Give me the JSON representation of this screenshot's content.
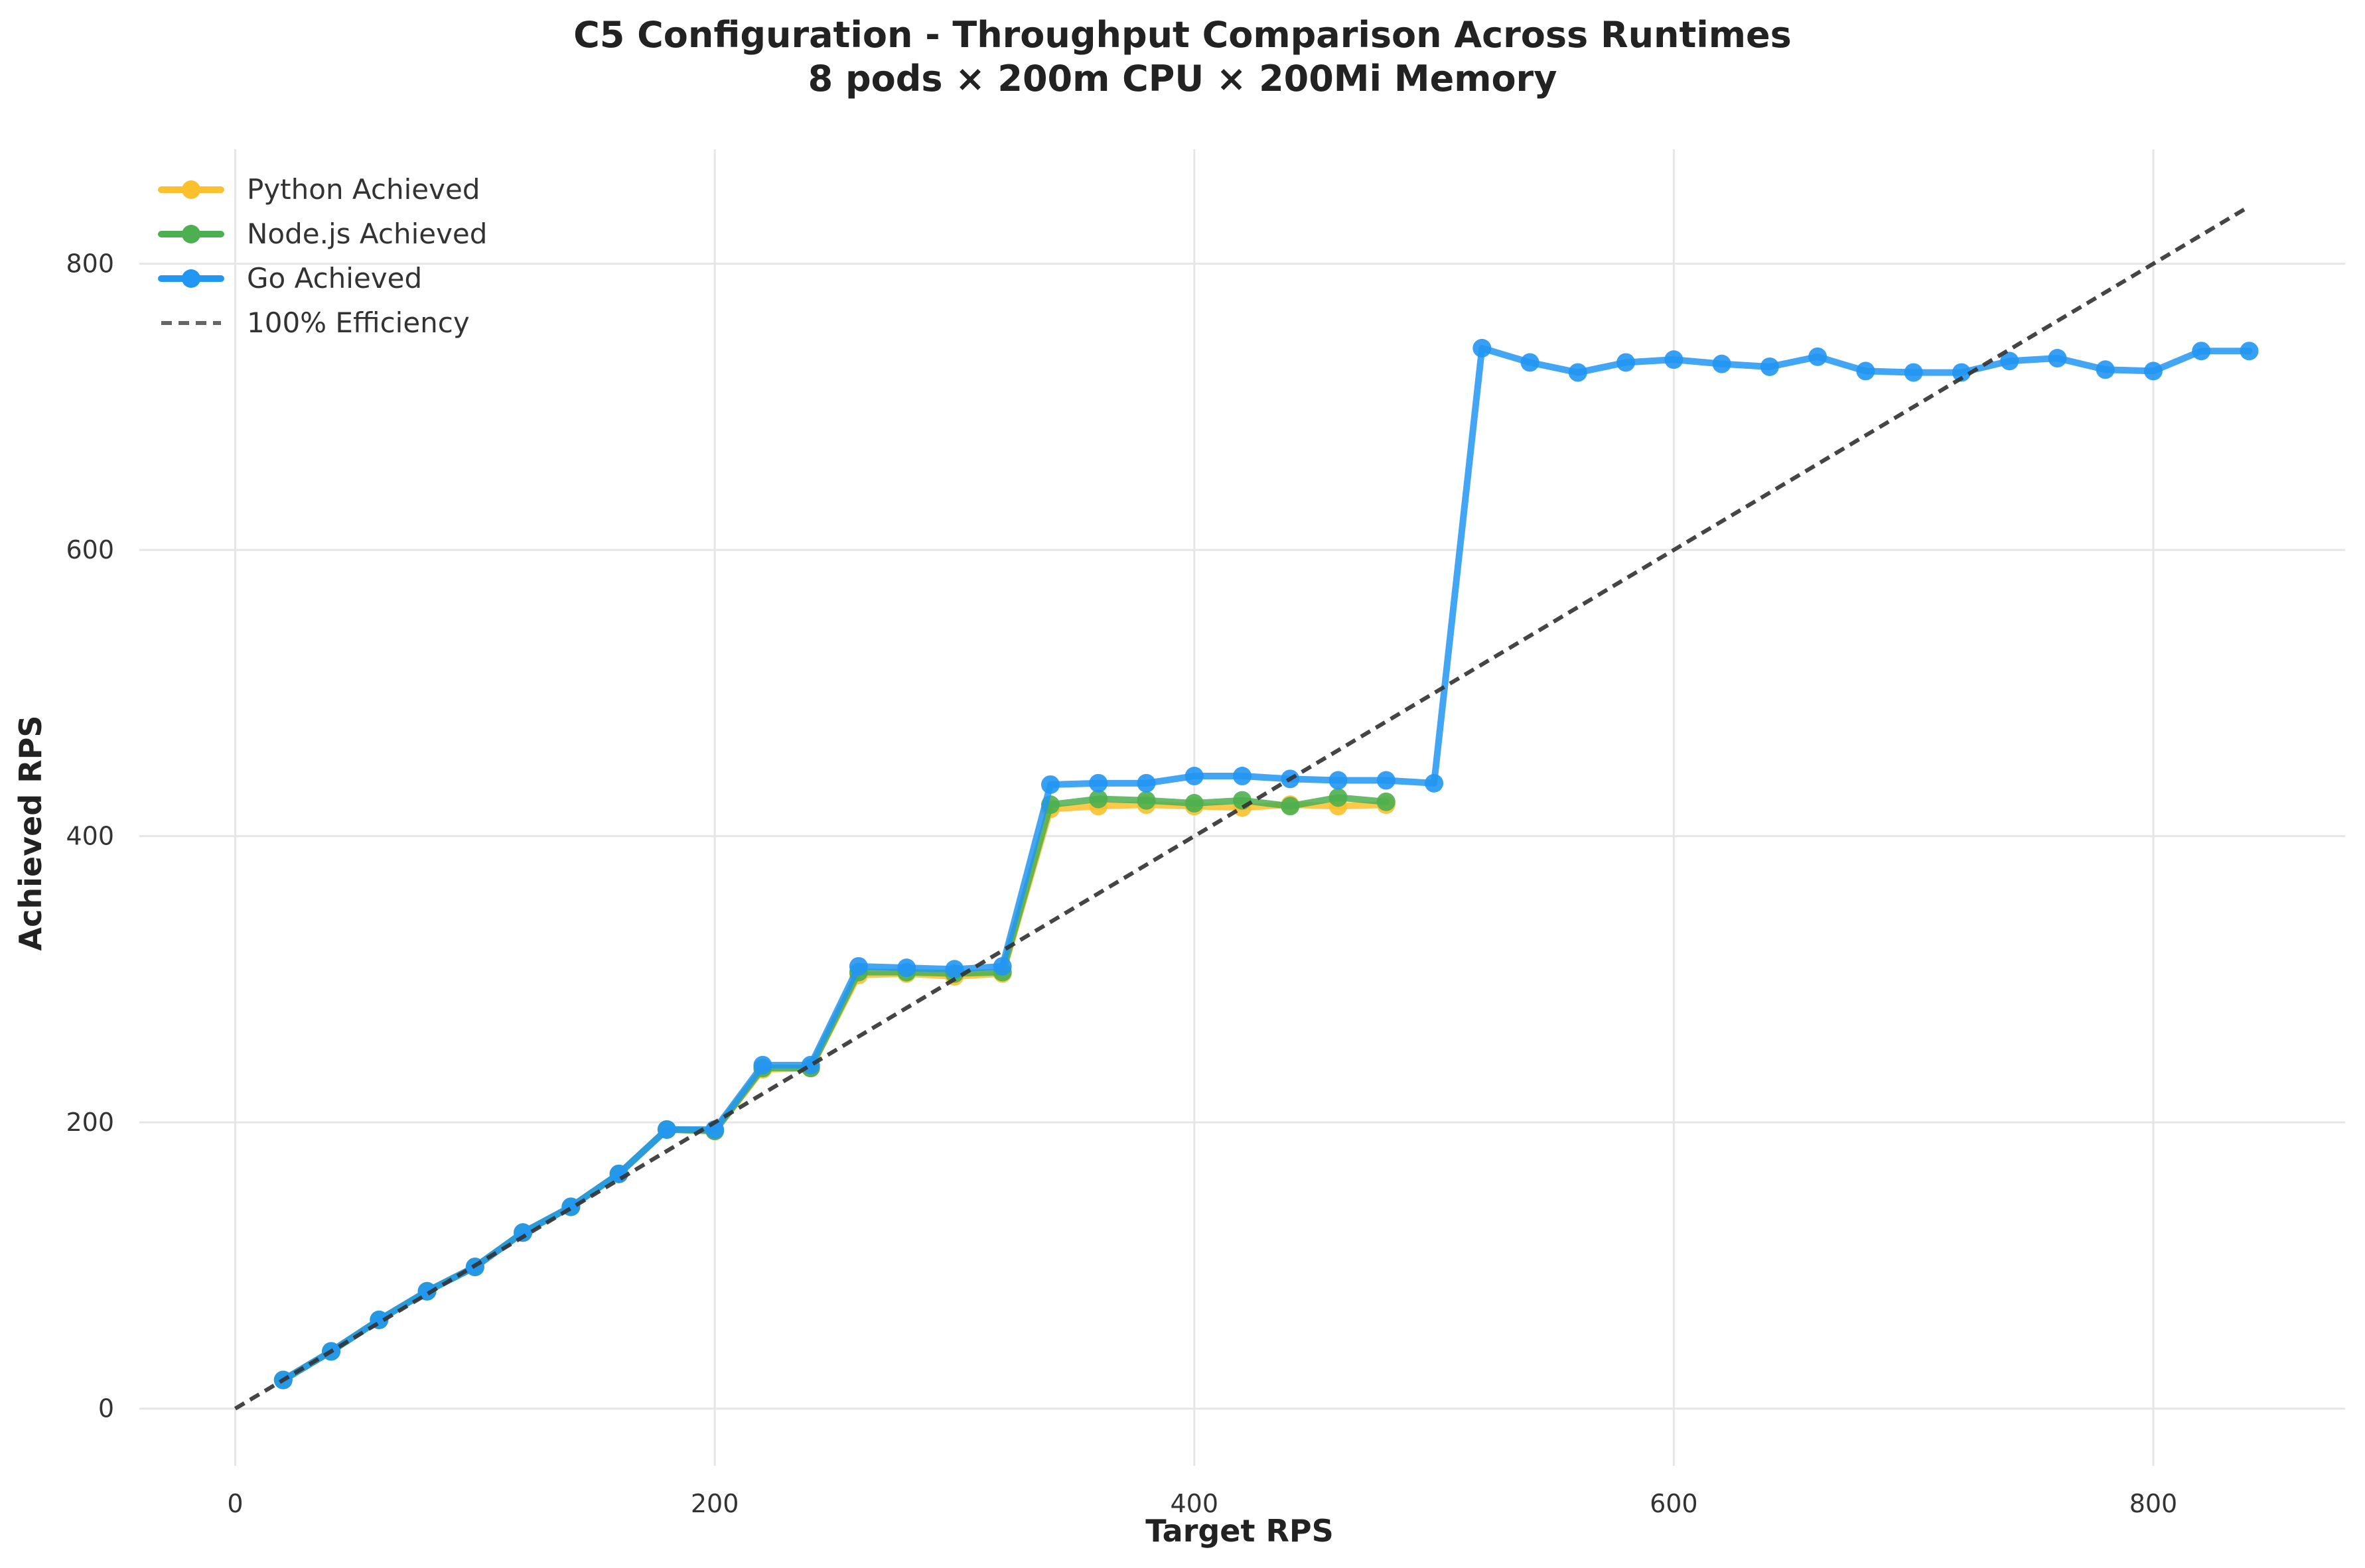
{
  "chart_data": {
    "type": "line",
    "title": "C5 Configuration - Throughput Comparison Across Runtimes",
    "subtitle": "8 pods × 200m CPU × 200Mi Memory",
    "xlabel": "Target RPS",
    "ylabel": "Achieved RPS",
    "xlim": [
      -40,
      880
    ],
    "ylim": [
      -40,
      880
    ],
    "xticks": [
      0,
      200,
      400,
      600,
      800
    ],
    "yticks": [
      0,
      200,
      400,
      600,
      800
    ],
    "grid": true,
    "legend_position": "top-left",
    "series": [
      {
        "name": "Python Achieved",
        "color": "#FBC02D",
        "style": "solid-markers",
        "points": [
          [
            20,
            20
          ],
          [
            40,
            40
          ],
          [
            60,
            62
          ],
          [
            80,
            82
          ],
          [
            100,
            99
          ],
          [
            120,
            123
          ],
          [
            140,
            141
          ],
          [
            160,
            164
          ],
          [
            180,
            195
          ],
          [
            200,
            194
          ],
          [
            220,
            237
          ],
          [
            240,
            238
          ],
          [
            260,
            303
          ],
          [
            280,
            304
          ],
          [
            300,
            302
          ],
          [
            320,
            304
          ],
          [
            340,
            419
          ],
          [
            360,
            421
          ],
          [
            380,
            422
          ],
          [
            400,
            421
          ],
          [
            420,
            420
          ],
          [
            440,
            422
          ],
          [
            460,
            421
          ],
          [
            480,
            422
          ]
        ]
      },
      {
        "name": "Node.js Achieved",
        "color": "#4CAF50",
        "style": "solid-markers",
        "points": [
          [
            20,
            20
          ],
          [
            40,
            40
          ],
          [
            60,
            62
          ],
          [
            80,
            82
          ],
          [
            100,
            99
          ],
          [
            120,
            123
          ],
          [
            140,
            141
          ],
          [
            160,
            164
          ],
          [
            180,
            195
          ],
          [
            200,
            194
          ],
          [
            220,
            238
          ],
          [
            240,
            238
          ],
          [
            260,
            305
          ],
          [
            280,
            305
          ],
          [
            300,
            304
          ],
          [
            320,
            305
          ],
          [
            340,
            422
          ],
          [
            360,
            426
          ],
          [
            380,
            425
          ],
          [
            400,
            423
          ],
          [
            420,
            425
          ],
          [
            440,
            421
          ],
          [
            460,
            427
          ],
          [
            480,
            424
          ]
        ]
      },
      {
        "name": "Go Achieved",
        "color": "#2196F3",
        "style": "solid-markers",
        "points": [
          [
            20,
            20
          ],
          [
            40,
            40
          ],
          [
            60,
            62
          ],
          [
            80,
            82
          ],
          [
            100,
            99
          ],
          [
            120,
            123
          ],
          [
            140,
            141
          ],
          [
            160,
            164
          ],
          [
            180,
            195
          ],
          [
            200,
            195
          ],
          [
            220,
            240
          ],
          [
            240,
            240
          ],
          [
            260,
            309
          ],
          [
            280,
            308
          ],
          [
            300,
            307
          ],
          [
            320,
            309
          ],
          [
            340,
            436
          ],
          [
            360,
            437
          ],
          [
            380,
            437
          ],
          [
            400,
            442
          ],
          [
            420,
            442
          ],
          [
            440,
            440
          ],
          [
            460,
            439
          ],
          [
            480,
            439
          ],
          [
            500,
            437
          ],
          [
            520,
            741
          ],
          [
            540,
            731
          ],
          [
            560,
            724
          ],
          [
            580,
            731
          ],
          [
            600,
            733
          ],
          [
            620,
            730
          ],
          [
            640,
            728
          ],
          [
            660,
            735
          ],
          [
            680,
            725
          ],
          [
            700,
            724
          ],
          [
            720,
            724
          ],
          [
            740,
            732
          ],
          [
            760,
            734
          ],
          [
            780,
            726
          ],
          [
            800,
            725
          ],
          [
            820,
            739
          ],
          [
            840,
            739
          ]
        ]
      },
      {
        "name": "100% Efficiency",
        "color": "#333333",
        "style": "dashed",
        "points": [
          [
            0,
            0
          ],
          [
            840,
            840
          ]
        ]
      }
    ]
  }
}
